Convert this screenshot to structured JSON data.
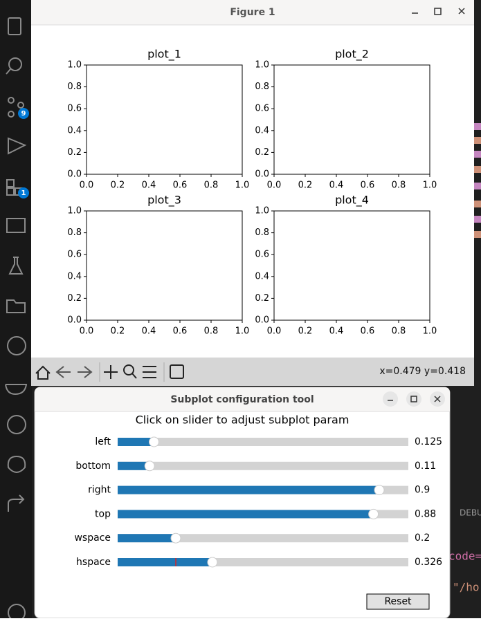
{
  "sidebar": {
    "badges": [
      9,
      1
    ]
  },
  "editor_fragments": [
    "DEBU",
    "code=",
    "\"/ho"
  ],
  "figure_window": {
    "title": "Figure 1",
    "plots": [
      {
        "title": "plot_1",
        "xlim": [
          0,
          1
        ],
        "ylim": [
          0,
          1
        ],
        "xticks": [
          {
            "value": 0,
            "label": "0.0"
          },
          0.2,
          0.4,
          0.6,
          0.8,
          {
            "value": 1,
            "label": "1.0"
          }
        ],
        "yticks": [
          {
            "value": 0,
            "label": "0.0"
          },
          0.2,
          0.4,
          0.6,
          0.8,
          {
            "value": 1,
            "label": "1.0"
          }
        ]
      },
      {
        "title": "plot_2",
        "xlim": [
          0,
          1
        ],
        "ylim": [
          0,
          1
        ],
        "xticks": [
          {
            "value": 0,
            "label": "0.0"
          },
          0.2,
          0.4,
          0.6,
          0.8,
          {
            "value": 1,
            "label": "1.0"
          }
        ],
        "yticks": [
          {
            "value": 0,
            "label": "0.0"
          },
          0.2,
          0.4,
          0.6,
          0.8,
          {
            "value": 1,
            "label": "1.0"
          }
        ]
      },
      {
        "title": "plot_3",
        "xlim": [
          0,
          1
        ],
        "ylim": [
          0,
          1
        ],
        "xticks": [
          {
            "value": 0,
            "label": "0.0"
          },
          0.2,
          0.4,
          0.6,
          0.8,
          {
            "value": 1,
            "label": "1.0"
          }
        ],
        "yticks": [
          {
            "value": 0,
            "label": "0.0"
          },
          0.2,
          0.4,
          0.6,
          0.8,
          {
            "value": 1,
            "label": "1.0"
          }
        ]
      },
      {
        "title": "plot_4",
        "xlim": [
          0,
          1
        ],
        "ylim": [
          0,
          1
        ],
        "xticks": [
          {
            "value": 0,
            "label": "0.0"
          },
          0.2,
          0.4,
          0.6,
          0.8,
          {
            "value": 1,
            "label": "1.0"
          }
        ],
        "yticks": [
          {
            "value": 0,
            "label": "0.0"
          },
          0.2,
          0.4,
          0.6,
          0.8,
          {
            "value": 1,
            "label": "1.0"
          }
        ]
      }
    ],
    "status": "x=0.479 y=0.418"
  },
  "subplot_tool": {
    "title": "Subplot configuration tool",
    "heading": "Click on slider to adjust subplot param",
    "sliders": [
      {
        "label": "left",
        "value": 0.125,
        "lim": [
          0,
          1
        ]
      },
      {
        "label": "bottom",
        "value": 0.11,
        "lim": [
          0,
          1
        ]
      },
      {
        "label": "right",
        "value": 0.9,
        "lim": [
          0,
          1
        ]
      },
      {
        "label": "top",
        "value": 0.88,
        "lim": [
          0,
          1
        ]
      },
      {
        "label": "wspace",
        "value": 0.2,
        "lim": [
          0,
          1
        ]
      },
      {
        "label": "hspace",
        "value": 0.326,
        "lim": [
          0,
          1
        ],
        "initial": 0.2
      }
    ],
    "reset": "Reset"
  }
}
